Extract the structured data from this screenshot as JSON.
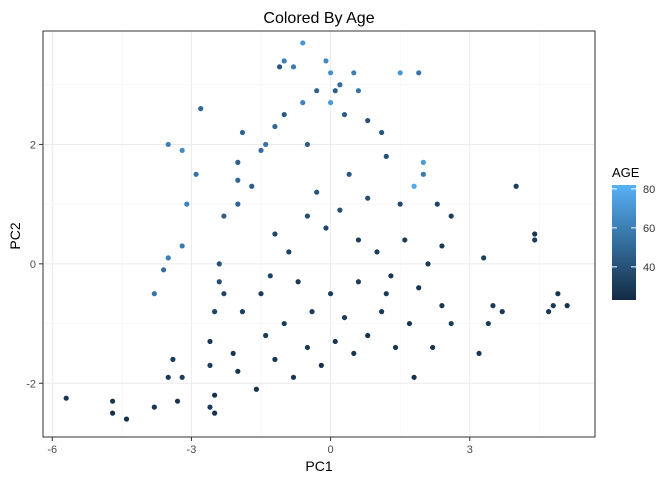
{
  "chart_data": {
    "type": "scatter",
    "title": "Colored By Age",
    "xlabel": "PC1",
    "ylabel": "PC2",
    "xlim": [
      -6.2,
      5.7
    ],
    "ylim": [
      -2.9,
      3.9
    ],
    "x_ticks": [
      -6,
      -3,
      0,
      3
    ],
    "x_tick_labels": [
      "-6",
      "-3",
      "0",
      "3"
    ],
    "y_ticks": [
      -2,
      0,
      2
    ],
    "y_tick_labels": [
      "-2",
      "0",
      "2"
    ],
    "grid": true,
    "legend": {
      "title": "AGE",
      "type": "colorbar",
      "placement": "right",
      "min": 23,
      "max": 82,
      "ticks": [
        40,
        60,
        80
      ],
      "tick_labels": [
        "40",
        "60",
        "80"
      ],
      "low_color": "#132b43",
      "high_color": "#56b1f7"
    },
    "points": [
      {
        "x": -5.7,
        "y": -2.25,
        "age": 28
      },
      {
        "x": -4.7,
        "y": -2.3,
        "age": 27
      },
      {
        "x": -4.7,
        "y": -2.5,
        "age": 26
      },
      {
        "x": -4.4,
        "y": -2.6,
        "age": 25
      },
      {
        "x": -3.8,
        "y": -2.4,
        "age": 28
      },
      {
        "x": -3.3,
        "y": -2.3,
        "age": 27
      },
      {
        "x": -2.5,
        "y": -2.5,
        "age": 26
      },
      {
        "x": -2.6,
        "y": -2.4,
        "age": 30
      },
      {
        "x": -3.8,
        "y": -0.5,
        "age": 55
      },
      {
        "x": -3.5,
        "y": 0.1,
        "age": 60
      },
      {
        "x": -3.6,
        "y": -0.1,
        "age": 52
      },
      {
        "x": -3.2,
        "y": 0.3,
        "age": 58
      },
      {
        "x": -3.1,
        "y": 1.0,
        "age": 62
      },
      {
        "x": -2.9,
        "y": 1.5,
        "age": 55
      },
      {
        "x": -3.5,
        "y": 2.0,
        "age": 60
      },
      {
        "x": -3.2,
        "y": 1.9,
        "age": 65
      },
      {
        "x": -2.8,
        "y": 2.6,
        "age": 50
      },
      {
        "x": -3.4,
        "y": -1.6,
        "age": 30
      },
      {
        "x": -3.2,
        "y": -1.9,
        "age": 32
      },
      {
        "x": -3.5,
        "y": -1.9,
        "age": 29
      },
      {
        "x": -2.6,
        "y": -1.7,
        "age": 30
      },
      {
        "x": -2.6,
        "y": -1.3,
        "age": 28
      },
      {
        "x": -2.5,
        "y": -0.8,
        "age": 34
      },
      {
        "x": -2.4,
        "y": -0.3,
        "age": 38
      },
      {
        "x": -2.4,
        "y": 0.0,
        "age": 40
      },
      {
        "x": -2.3,
        "y": 0.8,
        "age": 46
      },
      {
        "x": -2.0,
        "y": 1.0,
        "age": 48
      },
      {
        "x": -2.0,
        "y": 1.4,
        "age": 50
      },
      {
        "x": -2.0,
        "y": 1.7,
        "age": 46
      },
      {
        "x": -1.9,
        "y": 2.2,
        "age": 48
      },
      {
        "x": -1.7,
        "y": 1.3,
        "age": 45
      },
      {
        "x": -1.5,
        "y": 1.9,
        "age": 52
      },
      {
        "x": -1.4,
        "y": 2.0,
        "age": 55
      },
      {
        "x": -1.2,
        "y": 2.3,
        "age": 50
      },
      {
        "x": -1.0,
        "y": 2.5,
        "age": 44
      },
      {
        "x": -1.0,
        "y": 3.4,
        "age": 60
      },
      {
        "x": -0.8,
        "y": 3.3,
        "age": 58
      },
      {
        "x": -1.1,
        "y": 3.3,
        "age": 42
      },
      {
        "x": -0.6,
        "y": 3.7,
        "age": 70
      },
      {
        "x": -0.6,
        "y": 2.7,
        "age": 62
      },
      {
        "x": -0.5,
        "y": 2.0,
        "age": 45
      },
      {
        "x": -0.3,
        "y": 2.9,
        "age": 48
      },
      {
        "x": -0.1,
        "y": 3.4,
        "age": 65
      },
      {
        "x": 0.0,
        "y": 3.2,
        "age": 68
      },
      {
        "x": 0.0,
        "y": 2.7,
        "age": 72
      },
      {
        "x": 0.2,
        "y": 3.0,
        "age": 52
      },
      {
        "x": 0.1,
        "y": 2.9,
        "age": 46
      },
      {
        "x": 0.3,
        "y": 2.5,
        "age": 44
      },
      {
        "x": 0.5,
        "y": 3.2,
        "age": 60
      },
      {
        "x": 0.6,
        "y": 2.9,
        "age": 55
      },
      {
        "x": 0.8,
        "y": 2.4,
        "age": 40
      },
      {
        "x": 1.1,
        "y": 2.2,
        "age": 42
      },
      {
        "x": 1.2,
        "y": 1.8,
        "age": 40
      },
      {
        "x": 1.5,
        "y": 3.2,
        "age": 70
      },
      {
        "x": 1.9,
        "y": 3.2,
        "age": 55
      },
      {
        "x": 2.0,
        "y": 1.7,
        "age": 72
      },
      {
        "x": 2.0,
        "y": 1.5,
        "age": 56
      },
      {
        "x": 1.8,
        "y": 1.3,
        "age": 78
      },
      {
        "x": 1.5,
        "y": 1.0,
        "age": 36
      },
      {
        "x": 2.3,
        "y": 1.0,
        "age": 34
      },
      {
        "x": 2.6,
        "y": 0.8,
        "age": 32
      },
      {
        "x": 2.4,
        "y": 0.3,
        "age": 30
      },
      {
        "x": 3.3,
        "y": 0.1,
        "age": 32
      },
      {
        "x": 3.5,
        "y": -0.7,
        "age": 30
      },
      {
        "x": 3.7,
        "y": -0.8,
        "age": 28
      },
      {
        "x": 3.4,
        "y": -1.0,
        "age": 29
      },
      {
        "x": 3.2,
        "y": -1.5,
        "age": 28
      },
      {
        "x": 2.6,
        "y": -1.0,
        "age": 30
      },
      {
        "x": 4.0,
        "y": 1.3,
        "age": 31
      },
      {
        "x": 4.4,
        "y": 0.4,
        "age": 30
      },
      {
        "x": 4.4,
        "y": 0.5,
        "age": 28
      },
      {
        "x": 4.9,
        "y": -0.5,
        "age": 27
      },
      {
        "x": 5.1,
        "y": -0.7,
        "age": 26
      },
      {
        "x": 4.7,
        "y": -0.8,
        "age": 28
      },
      {
        "x": 4.8,
        "y": -0.7,
        "age": 30
      },
      {
        "x": -2.5,
        "y": -2.2,
        "age": 26
      },
      {
        "x": -2.1,
        "y": -1.5,
        "age": 27
      },
      {
        "x": -2.3,
        "y": -0.5,
        "age": 34
      },
      {
        "x": -1.9,
        "y": -0.8,
        "age": 31
      },
      {
        "x": -1.5,
        "y": -0.5,
        "age": 30
      },
      {
        "x": -1.3,
        "y": -0.2,
        "age": 33
      },
      {
        "x": -1.2,
        "y": 0.5,
        "age": 36
      },
      {
        "x": -0.9,
        "y": 0.2,
        "age": 33
      },
      {
        "x": -0.7,
        "y": -0.3,
        "age": 29
      },
      {
        "x": -0.5,
        "y": 0.8,
        "age": 38
      },
      {
        "x": -0.3,
        "y": 1.2,
        "age": 41
      },
      {
        "x": -0.1,
        "y": 0.6,
        "age": 35
      },
      {
        "x": 0.2,
        "y": 0.9,
        "age": 40
      },
      {
        "x": 0.4,
        "y": 1.5,
        "age": 43
      },
      {
        "x": 0.6,
        "y": 0.4,
        "age": 32
      },
      {
        "x": 0.8,
        "y": 1.1,
        "age": 38
      },
      {
        "x": 1.0,
        "y": 0.2,
        "age": 31
      },
      {
        "x": 1.3,
        "y": -0.2,
        "age": 28
      },
      {
        "x": 1.6,
        "y": 0.4,
        "age": 30
      },
      {
        "x": 1.9,
        "y": -0.4,
        "age": 27
      },
      {
        "x": 2.1,
        "y": 0.0,
        "age": 29
      },
      {
        "x": -2.0,
        "y": -1.8,
        "age": 27
      },
      {
        "x": -1.6,
        "y": -2.1,
        "age": 26
      },
      {
        "x": -1.2,
        "y": -1.6,
        "age": 28
      },
      {
        "x": -0.8,
        "y": -1.9,
        "age": 27
      },
      {
        "x": -0.5,
        "y": -1.4,
        "age": 29
      },
      {
        "x": -0.2,
        "y": -1.7,
        "age": 26
      },
      {
        "x": 0.1,
        "y": -1.3,
        "age": 28
      },
      {
        "x": 0.3,
        "y": -0.9,
        "age": 30
      },
      {
        "x": 0.5,
        "y": -1.5,
        "age": 27
      },
      {
        "x": 0.8,
        "y": -1.2,
        "age": 26
      },
      {
        "x": 1.1,
        "y": -0.8,
        "age": 29
      },
      {
        "x": 1.4,
        "y": -1.4,
        "age": 27
      },
      {
        "x": 1.7,
        "y": -1.0,
        "age": 28
      },
      {
        "x": 1.8,
        "y": -1.9,
        "age": 26
      },
      {
        "x": 2.2,
        "y": -1.4,
        "age": 27
      },
      {
        "x": 2.4,
        "y": -0.7,
        "age": 28
      },
      {
        "x": -1.0,
        "y": -1.0,
        "age": 30
      },
      {
        "x": -1.4,
        "y": -1.2,
        "age": 29
      },
      {
        "x": 0.0,
        "y": -0.5,
        "age": 31
      },
      {
        "x": 0.6,
        "y": -0.3,
        "age": 30
      },
      {
        "x": 1.2,
        "y": -0.5,
        "age": 29
      },
      {
        "x": -0.4,
        "y": -0.8,
        "age": 31
      }
    ]
  }
}
